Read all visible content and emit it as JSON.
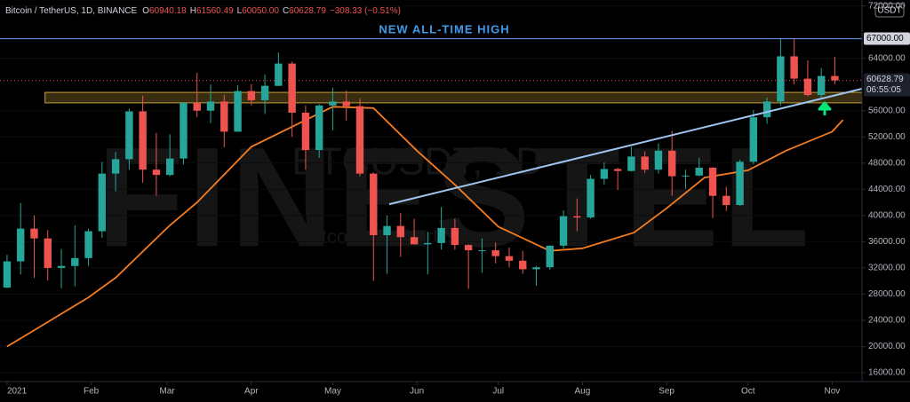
{
  "chart_data": {
    "type": "candlestick",
    "header": {
      "symbol": "Bitcoin / TetherUS, 1D, BINANCE",
      "ohlc": [
        {
          "key": "O",
          "value": "60940.18"
        },
        {
          "key": "H",
          "value": "61560.49"
        },
        {
          "key": "L",
          "value": "60050.00"
        },
        {
          "key": "C",
          "value": "60628.79"
        }
      ],
      "change": "−308.33 (−0.51%)"
    },
    "currency": "USDT",
    "annotation": "NEW ALL-TIME HIGH",
    "watermark": {
      "brand": "FINESTEL",
      "ticker": "BTCUSDT, 1D",
      "name": "Bitcoin / TetherUS"
    },
    "up_color": "#26a69a",
    "down_color": "#ef5350",
    "x": [
      0,
      5,
      10,
      15,
      20,
      25,
      30,
      35,
      40,
      45,
      50,
      55,
      60,
      65,
      70,
      75,
      80,
      85,
      90,
      95,
      100,
      105,
      110,
      115,
      120,
      125,
      130,
      135,
      140,
      145,
      150,
      155,
      160,
      165,
      170,
      175,
      180,
      185,
      190,
      195,
      200,
      205,
      210,
      215,
      220,
      225,
      230,
      235,
      240,
      245,
      250,
      255,
      260,
      265,
      270,
      275,
      280,
      285,
      290,
      295,
      300,
      305
    ],
    "open": [
      29000,
      33000,
      38000,
      36500,
      32000,
      32300,
      33500,
      37600,
      46400,
      48600,
      55900,
      47000,
      46200,
      48700,
      57200,
      56000,
      57400,
      52800,
      59000,
      57600,
      59800,
      63200,
      55700,
      50000,
      56800,
      57400,
      56700,
      46400,
      37000,
      38400,
      36700,
      35600,
      35800,
      38100,
      35500,
      34700,
      34700,
      33800,
      33100,
      31800,
      32100,
      35400,
      39900,
      39700,
      45600,
      47100,
      46800,
      49000,
      47000,
      49900,
      46000,
      46100,
      47300,
      43000,
      41600,
      48200,
      55000,
      57400,
      64300,
      60900,
      58400,
      61300
    ],
    "high": [
      34000,
      41900,
      40000,
      37800,
      34900,
      38500,
      38000,
      48200,
      49700,
      56300,
      58300,
      52600,
      52400,
      57300,
      61800,
      60000,
      58400,
      59900,
      60100,
      61500,
      64900,
      63500,
      56800,
      57000,
      59500,
      59100,
      57900,
      46600,
      40000,
      40400,
      39500,
      37500,
      41300,
      39500,
      35600,
      36500,
      35900,
      35100,
      34600,
      32300,
      35400,
      40800,
      42600,
      46200,
      48100,
      47300,
      50500,
      49800,
      51000,
      52900,
      47000,
      48800,
      47400,
      44400,
      48500,
      56100,
      58000,
      67000,
      67000,
      63700,
      62500,
      64200
    ],
    "low": [
      28900,
      31000,
      30500,
      30100,
      28900,
      29200,
      32300,
      36600,
      43700,
      47000,
      45000,
      43000,
      46000,
      47800,
      55000,
      54100,
      50400,
      53000,
      56800,
      55500,
      59800,
      52000,
      47000,
      48800,
      53000,
      54500,
      46000,
      30000,
      31100,
      33700,
      35700,
      31000,
      34800,
      34800,
      28800,
      31300,
      32700,
      32100,
      31100,
      29300,
      31700,
      35000,
      37600,
      39500,
      44700,
      43900,
      46700,
      46500,
      46400,
      43000,
      44100,
      46000,
      39600,
      40700,
      41500,
      47800,
      54000,
      56800,
      60000,
      58200,
      57800,
      60000
    ],
    "close": [
      33000,
      38000,
      36500,
      32000,
      32300,
      33500,
      37600,
      46400,
      48600,
      55900,
      47000,
      46200,
      48700,
      57200,
      56000,
      57400,
      52800,
      59000,
      57600,
      59800,
      63200,
      55700,
      50000,
      56800,
      57400,
      56700,
      46400,
      37000,
      38400,
      36700,
      35600,
      35800,
      38100,
      35500,
      34700,
      34700,
      33800,
      33100,
      31800,
      32100,
      35400,
      39900,
      39700,
      45600,
      47100,
      46800,
      49000,
      47000,
      49900,
      46000,
      46100,
      47300,
      43000,
      41600,
      48200,
      55000,
      57400,
      64300,
      60900,
      58400,
      61300,
      60628.79
    ],
    "moving_average": {
      "color": "#f57c1f",
      "x": [
        0,
        10,
        20,
        30,
        40,
        50,
        60,
        70,
        90,
        120,
        135,
        151,
        165,
        181,
        200,
        212,
        231,
        243,
        257,
        273,
        287,
        304,
        308
      ],
      "values": [
        20000,
        22500,
        25000,
        27500,
        30500,
        34500,
        38500,
        42000,
        50500,
        56600,
        56400,
        49900,
        44700,
        38300,
        34600,
        35000,
        37400,
        41100,
        45800,
        46900,
        49900,
        52800,
        54600
      ]
    },
    "trendline": {
      "color": "#9ec5f0",
      "x": [
        140.8,
        315
      ],
      "values": [
        41735,
        59350
      ]
    },
    "resistance_zone": {
      "color": "#c8a13a",
      "range": [
        57200,
        58800
      ]
    },
    "ath_level": {
      "color": "#5b8fd6",
      "value": 67000,
      "label": "67000.00"
    },
    "last_price": {
      "value": 60628.79,
      "label": "60628.79"
    },
    "countdown": "06:55:05",
    "xlim": [
      -2.6,
      315
    ],
    "ylim": [
      14650,
      72900
    ],
    "xticks": [
      {
        "value": 0,
        "label": "2021"
      },
      {
        "value": 31,
        "label": "Feb"
      },
      {
        "value": 59,
        "label": "Mar"
      },
      {
        "value": 90,
        "label": "Apr"
      },
      {
        "value": 120,
        "label": "May"
      },
      {
        "value": 151,
        "label": "Jun"
      },
      {
        "value": 181,
        "label": "Jul"
      },
      {
        "value": 212,
        "label": "Aug"
      },
      {
        "value": 243,
        "label": "Sep"
      },
      {
        "value": 273,
        "label": "Oct"
      },
      {
        "value": 304,
        "label": "Nov"
      }
    ],
    "yticks": [
      {
        "value": 16000,
        "label": "16000.00"
      },
      {
        "value": 20000,
        "label": "20000.00"
      },
      {
        "value": 24000,
        "label": "24000.00"
      },
      {
        "value": 28000,
        "label": "28000.00"
      },
      {
        "value": 32000,
        "label": "32000.00"
      },
      {
        "value": 36000,
        "label": "36000.00"
      },
      {
        "value": 40000,
        "label": "40000.00"
      },
      {
        "value": 44000,
        "label": "44000.00"
      },
      {
        "value": 48000,
        "label": "48000.00"
      },
      {
        "value": 52000,
        "label": "52000.00"
      },
      {
        "value": 56000,
        "label": "56000.00"
      },
      {
        "value": 64000,
        "label": "64000.00"
      },
      {
        "value": 72000,
        "label": "72000.00"
      }
    ]
  }
}
